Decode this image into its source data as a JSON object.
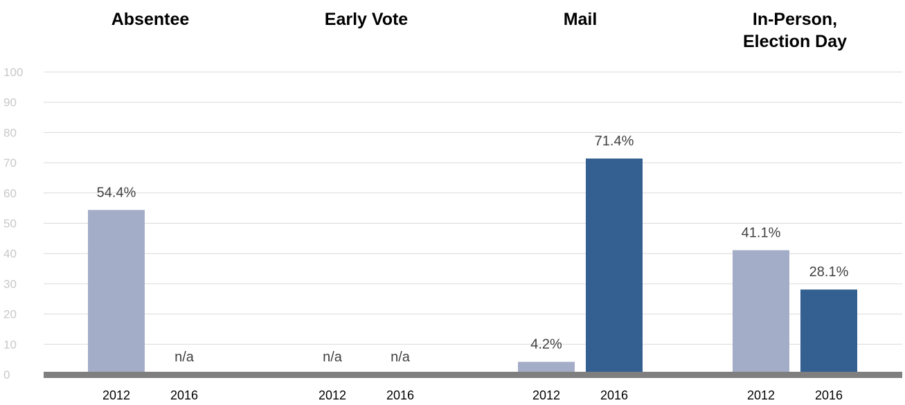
{
  "chart_data": {
    "type": "bar",
    "ylim": [
      0,
      100
    ],
    "yticks": [
      0,
      10,
      20,
      30,
      40,
      50,
      60,
      70,
      80,
      90,
      100
    ],
    "grid": true,
    "groups": [
      {
        "title_lines": [
          "Absentee"
        ],
        "bars": [
          {
            "category": "2012",
            "value": 54.4,
            "label": "54.4%"
          },
          {
            "category": "2016",
            "value": null,
            "label": "n/a"
          }
        ]
      },
      {
        "title_lines": [
          "Early Vote"
        ],
        "bars": [
          {
            "category": "2012",
            "value": null,
            "label": "n/a"
          },
          {
            "category": "2016",
            "value": null,
            "label": "n/a"
          }
        ]
      },
      {
        "title_lines": [
          "Mail"
        ],
        "bars": [
          {
            "category": "2012",
            "value": 4.2,
            "label": "4.2%"
          },
          {
            "category": "2016",
            "value": 71.4,
            "label": "71.4%"
          }
        ]
      },
      {
        "title_lines": [
          "In-Person,",
          "Election Day"
        ],
        "bars": [
          {
            "category": "2012",
            "value": 41.1,
            "label": "41.1%"
          },
          {
            "category": "2016",
            "value": 28.1,
            "label": "28.1%"
          }
        ]
      }
    ],
    "colors": {
      "2012": "#a4adc8",
      "2016": "#345f91",
      "baseline": "#7f7f7f"
    }
  }
}
